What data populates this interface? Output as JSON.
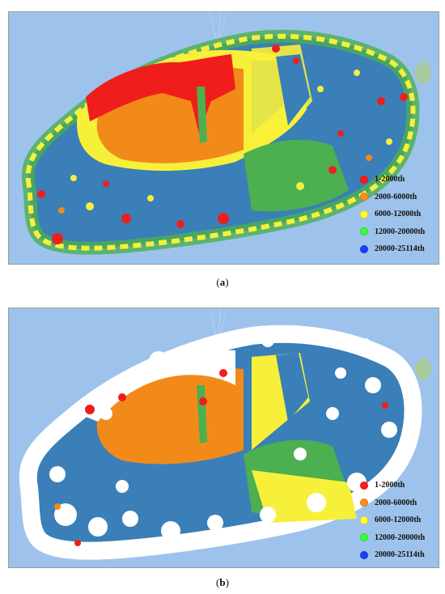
{
  "colors": {
    "sea": "#9dc3ec",
    "island_base": "#3a7fb7",
    "green": "#4caf50",
    "yellow": "#f7f03a",
    "orange": "#f28a1a",
    "red": "#f01d1d",
    "white": "#ffffff",
    "islet": "#a8c8a0"
  },
  "legend": [
    {
      "label": "1-2000th",
      "color": "#ff1a1a"
    },
    {
      "label": "2000-6000th",
      "color": "#ff8c1a"
    },
    {
      "label": "6000-12000th",
      "color": "#ffff33"
    },
    {
      "label": "12000-20000th",
      "color": "#33ff33"
    },
    {
      "label": "20000-25114th",
      "color": "#1a3dff"
    }
  ],
  "panels": [
    {
      "id": "a",
      "caption_letter": "a"
    },
    {
      "id": "b",
      "caption_letter": "b"
    }
  ]
}
